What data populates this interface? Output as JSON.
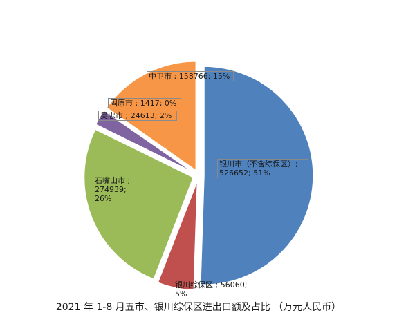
{
  "chart_data": {
    "type": "pie",
    "title": "2021 年 1-8 月五市、银川综保区进出口额及占比 （万元人民币）",
    "slices": [
      {
        "name": "银川市（不含综保区）",
        "value": 526652,
        "percent_label": "51%",
        "color": "#4f81bd",
        "label": "银川市（不含综保区）;\n526652; 51%",
        "exploded": true
      },
      {
        "name": "银川综保区",
        "value": 56060,
        "percent_label": "5%",
        "color": "#c0504d",
        "label": "银川综保区 ; 56060;\n5%",
        "exploded": true
      },
      {
        "name": "石嘴山市",
        "value": 274939,
        "percent_label": "26%",
        "color": "#9bbb59",
        "label": "石嘴山市 ; 274939;\n26%",
        "exploded": true
      },
      {
        "name": "吴忠市",
        "value": 24613,
        "percent_label": "2%",
        "color": "#8064a2",
        "label": "吴忠市 ; 24613; 2%",
        "exploded": true
      },
      {
        "name": "固原市",
        "value": 1417,
        "percent_label": "0%",
        "color": "#4bacc6",
        "label": "固原市 ; 1417; 0%",
        "exploded": true
      },
      {
        "name": "中卫市",
        "value": 158766,
        "percent_label": "15%",
        "color": "#f79646",
        "label": "中卫市 ; 158766; 15%",
        "exploded": true
      }
    ],
    "legend": "none"
  }
}
